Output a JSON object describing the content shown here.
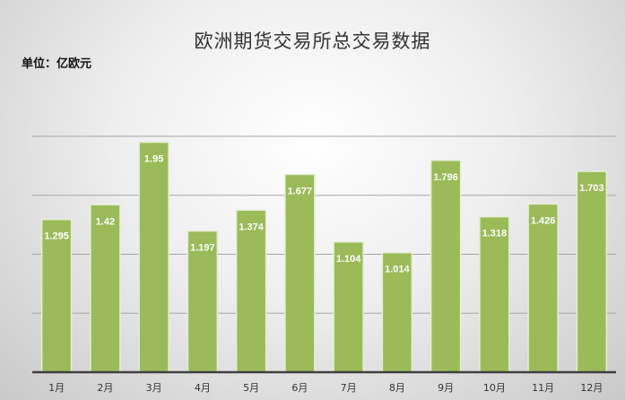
{
  "chart_data": {
    "type": "bar",
    "title": "欧洲期货交易所总交易数据",
    "unit_label": "单位：亿欧元",
    "categories": [
      "1月",
      "2月",
      "3月",
      "4月",
      "5月",
      "6月",
      "7月",
      "8月",
      "9月",
      "10月",
      "11月",
      "12月"
    ],
    "values": [
      1.295,
      1.42,
      1.95,
      1.197,
      1.374,
      1.677,
      1.104,
      1.014,
      1.796,
      1.318,
      1.426,
      1.703
    ],
    "data_labels": [
      "1.295",
      "1.42",
      "1.95",
      "1.197",
      "1.374",
      "1.677",
      "1.104",
      "1.014",
      "1.796",
      "1.318",
      "1.426",
      "1.703"
    ],
    "ylim": [
      0,
      2
    ],
    "grid_interval": 0.5,
    "grid": true,
    "y_tick_labels_shown": false,
    "legend": "none",
    "colors": {
      "bar": "#9bbb59",
      "bar_border": "#e6eed6",
      "label": "#ffffff",
      "axis": "#404040",
      "grid": "#a6a6a6"
    }
  }
}
